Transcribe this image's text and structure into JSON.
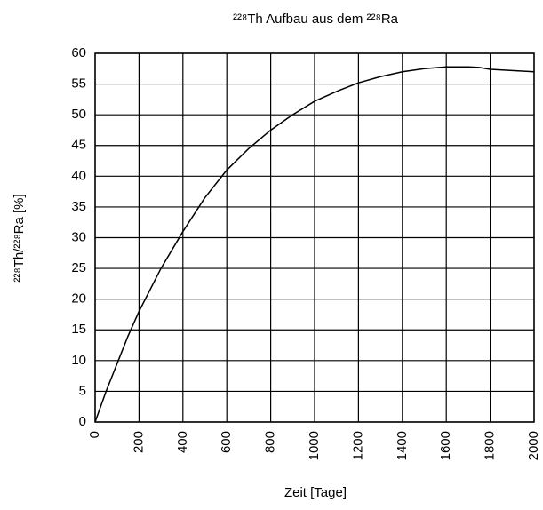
{
  "chart_data": {
    "type": "line",
    "title": "²²⁸Th Aufbau aus dem ²²⁸Ra",
    "xlabel": "Zeit [Tage]",
    "ylabel": "²²⁸Th/²²⁸Ra [%]",
    "x": [
      0,
      50,
      100,
      150,
      200,
      300,
      400,
      500,
      600,
      700,
      800,
      900,
      1000,
      1100,
      1200,
      1300,
      1400,
      1500,
      1600,
      1700,
      1750,
      1800,
      1900,
      2000
    ],
    "series": [
      {
        "name": "²²⁸Th/²²⁸Ra",
        "color": "#000000",
        "values": [
          0,
          5,
          9.5,
          14,
          18,
          25,
          31,
          36.5,
          41,
          44.5,
          47.5,
          50,
          52.2,
          53.8,
          55.2,
          56.2,
          57,
          57.5,
          57.8,
          57.8,
          57.7,
          57.4,
          57.2,
          57
        ]
      }
    ],
    "xlim": [
      0,
      2000
    ],
    "xticks": [
      0,
      200,
      400,
      600,
      800,
      1000,
      1200,
      1400,
      1600,
      1800,
      2000
    ],
    "ylim": [
      0,
      60
    ],
    "yticks": [
      0,
      5,
      10,
      15,
      20,
      25,
      30,
      35,
      40,
      45,
      50,
      55,
      60
    ],
    "grid": true,
    "legend": false
  }
}
